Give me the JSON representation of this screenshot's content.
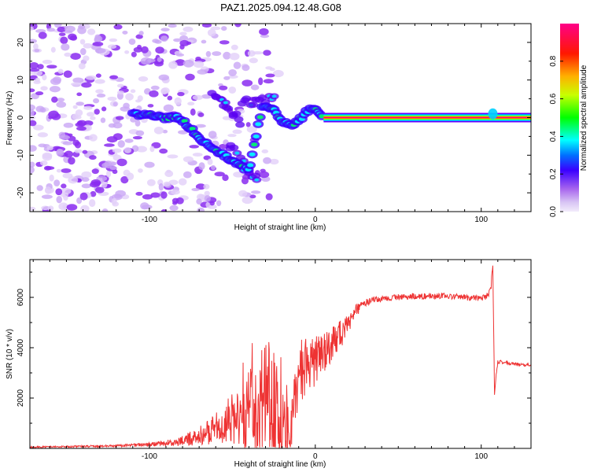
{
  "title": "PAZ1.2025.094.12.48.G08",
  "chart_data": [
    {
      "type": "heatmap",
      "xlabel": "Height of straight line (km)",
      "ylabel": "Frequency (Hz)",
      "xlim": [
        -172,
        130
      ],
      "ylim": [
        -25,
        25
      ],
      "xticks": [
        -100,
        0,
        100
      ],
      "yticks": [
        -20,
        -10,
        0,
        10,
        20
      ],
      "colorbar": {
        "label": "Normalized spectral amplitude",
        "range": [
          0.0,
          1.0
        ],
        "ticks": [
          "0.0",
          "0.2",
          "0.4",
          "0.6",
          "0.8"
        ],
        "colormap": "rainbow (light violet -> purple -> blue -> cyan -> green -> yellow -> red -> magenta)"
      },
      "ridge": {
        "description": "Main spectral ridge; noisy scattered spectrum below about -30 km, strong constant line at 0 Hz above about 5 km",
        "x": [
          -108,
          -100,
          -90,
          -82,
          -75,
          -68,
          -62,
          -55,
          -48,
          -40,
          -32,
          -25,
          -20,
          -15,
          -10,
          -5,
          0,
          5,
          10,
          30,
          60,
          90,
          105,
          110,
          130
        ],
        "frequency": [
          1,
          1,
          0,
          0,
          -3,
          -6,
          -8,
          -10,
          -12,
          -14,
          3,
          2,
          -1,
          -2,
          -1,
          2,
          2,
          0.5,
          0,
          0,
          0,
          0,
          0.5,
          0,
          0
        ]
      }
    },
    {
      "type": "line",
      "xlabel": "Height of straight line (km)",
      "ylabel": "SNR (10 * v/v)",
      "xlim": [
        -172,
        130
      ],
      "ylim": [
        0,
        7500
      ],
      "xticks": [
        -100,
        0,
        100
      ],
      "yticks": [
        2000,
        4000,
        6000
      ],
      "series": [
        {
          "color": "#ee3333",
          "x": [
            -172,
            -160,
            -140,
            -120,
            -100,
            -90,
            -80,
            -75,
            -70,
            -65,
            -60,
            -55,
            -50,
            -45,
            -40,
            -35,
            -30,
            -25,
            -20,
            -15,
            -10,
            -5,
            0,
            5,
            10,
            15,
            20,
            25,
            30,
            40,
            50,
            60,
            70,
            80,
            90,
            100,
            104,
            106,
            107,
            108,
            110,
            120,
            130
          ],
          "y": [
            50,
            60,
            80,
            100,
            150,
            200,
            300,
            400,
            550,
            650,
            800,
            1000,
            1200,
            1400,
            1500,
            1700,
            2000,
            1800,
            1000,
            600,
            3000,
            3200,
            3500,
            3800,
            4100,
            4500,
            5000,
            5500,
            5800,
            5950,
            6000,
            6050,
            6050,
            6050,
            6000,
            5950,
            6050,
            6500,
            7300,
            2200,
            3450,
            3350,
            3300
          ],
          "noise_amplitude": [
            30,
            30,
            40,
            50,
            80,
            120,
            200,
            300,
            400,
            500,
            600,
            800,
            1000,
            1300,
            1600,
            2000,
            2400,
            2600,
            1500,
            800,
            1400,
            1200,
            1000,
            800,
            700,
            600,
            400,
            250,
            150,
            120,
            120,
            120,
            120,
            120,
            120,
            120,
            150,
            200,
            200,
            200,
            80,
            60,
            60
          ]
        }
      ]
    }
  ]
}
